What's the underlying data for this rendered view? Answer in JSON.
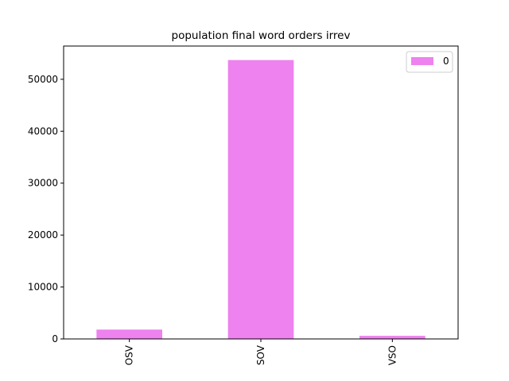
{
  "chart_data": {
    "type": "bar",
    "title": "population final word orders irrev",
    "xlabel": "",
    "ylabel": "",
    "categories": [
      "OSV",
      "SOV",
      "VSO"
    ],
    "series": [
      {
        "name": "0",
        "values": [
          1800,
          53700,
          600
        ],
        "color": "#ee82ee"
      }
    ],
    "ylim": [
      0,
      56400
    ],
    "yticks": [
      0,
      10000,
      20000,
      30000,
      40000,
      50000
    ],
    "ytick_labels": [
      "0",
      "10000",
      "20000",
      "30000",
      "40000",
      "50000"
    ],
    "grid": false,
    "legend": {
      "position": "top-right",
      "entries": [
        "0"
      ]
    }
  }
}
